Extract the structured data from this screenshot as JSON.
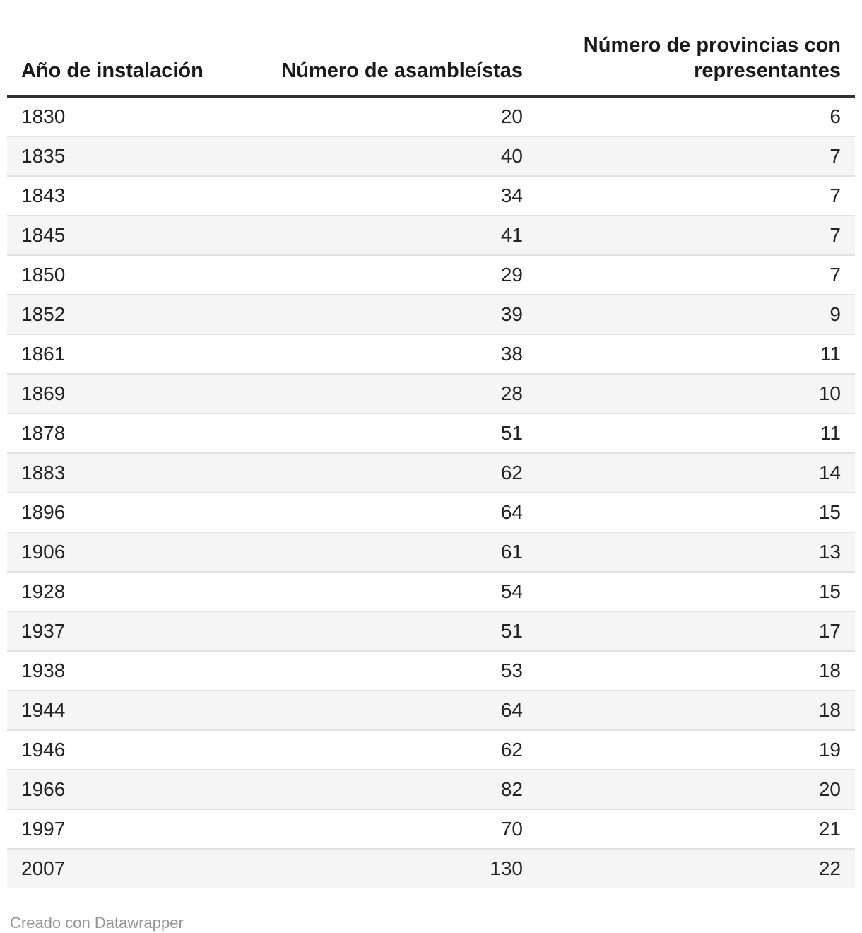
{
  "table": {
    "columns": [
      {
        "label": "Año de instalación",
        "align": "left"
      },
      {
        "label": "Número de asambleístas",
        "align": "right"
      },
      {
        "label": "Número de provincias con representantes",
        "align": "right"
      }
    ],
    "rows": [
      [
        "1830",
        "20",
        "6"
      ],
      [
        "1835",
        "40",
        "7"
      ],
      [
        "1843",
        "34",
        "7"
      ],
      [
        "1845",
        "41",
        "7"
      ],
      [
        "1850",
        "29",
        "7"
      ],
      [
        "1852",
        "39",
        "9"
      ],
      [
        "1861",
        "38",
        "11"
      ],
      [
        "1869",
        "28",
        "10"
      ],
      [
        "1878",
        "51",
        "11"
      ],
      [
        "1883",
        "62",
        "14"
      ],
      [
        "1896",
        "64",
        "15"
      ],
      [
        "1906",
        "61",
        "13"
      ],
      [
        "1928",
        "54",
        "15"
      ],
      [
        "1937",
        "51",
        "17"
      ],
      [
        "1938",
        "53",
        "18"
      ],
      [
        "1944",
        "64",
        "18"
      ],
      [
        "1946",
        "62",
        "19"
      ],
      [
        "1966",
        "82",
        "20"
      ],
      [
        "1997",
        "70",
        "21"
      ],
      [
        "2007",
        "130",
        "22"
      ]
    ]
  },
  "footer": {
    "attribution": "Creado con Datawrapper"
  },
  "colors": {
    "stripe": "#f5f5f5",
    "header_border": "#333333",
    "row_border": "#e1e1e1",
    "body_text": "#222222",
    "header_text": "#1a1a1a",
    "footer_text": "#949494"
  },
  "chart_data": {
    "type": "table",
    "title": "",
    "columns": [
      "Año de instalación",
      "Número de asambleístas",
      "Número de provincias con representantes"
    ],
    "rows": [
      [
        1830,
        20,
        6
      ],
      [
        1835,
        40,
        7
      ],
      [
        1843,
        34,
        7
      ],
      [
        1845,
        41,
        7
      ],
      [
        1850,
        29,
        7
      ],
      [
        1852,
        39,
        9
      ],
      [
        1861,
        38,
        11
      ],
      [
        1869,
        28,
        10
      ],
      [
        1878,
        51,
        11
      ],
      [
        1883,
        62,
        14
      ],
      [
        1896,
        64,
        15
      ],
      [
        1906,
        61,
        13
      ],
      [
        1928,
        54,
        15
      ],
      [
        1937,
        51,
        17
      ],
      [
        1938,
        53,
        18
      ],
      [
        1944,
        64,
        18
      ],
      [
        1946,
        62,
        19
      ],
      [
        1966,
        82,
        20
      ],
      [
        1997,
        70,
        21
      ],
      [
        2007,
        130,
        22
      ]
    ],
    "layout_hints": {
      "striped_rows": true,
      "column_alignment": [
        "left",
        "right",
        "right"
      ],
      "grid": "horizontal-only"
    }
  }
}
